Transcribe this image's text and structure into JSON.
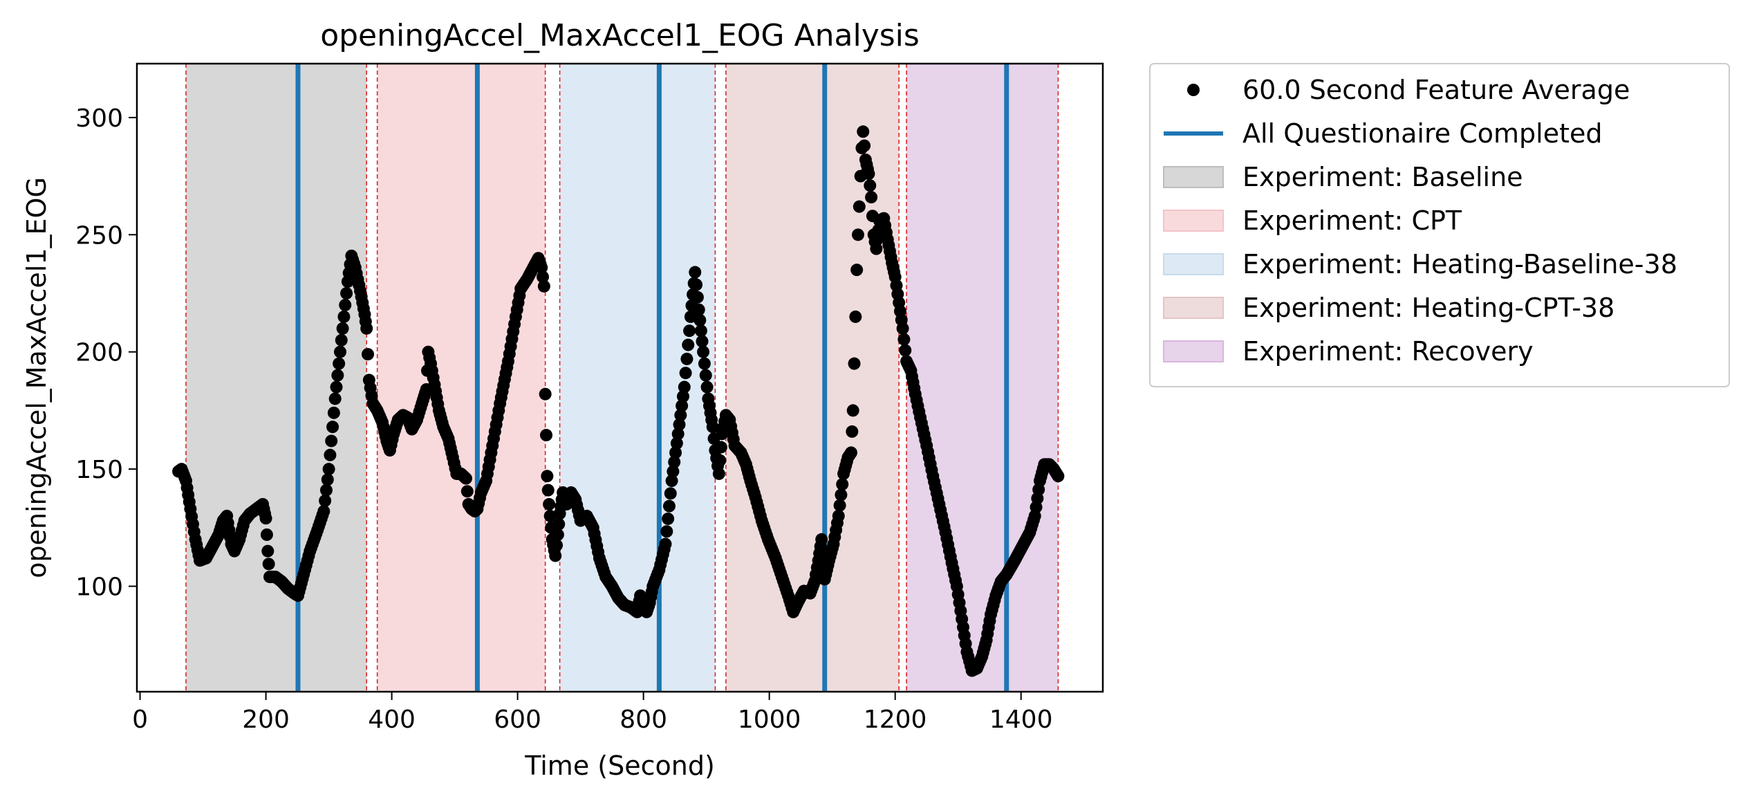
{
  "chart_data": {
    "type": "scatter",
    "title": "openingAccel_MaxAccel1_EOG Analysis",
    "xlabel": "Time (Second)",
    "ylabel": "openingAccel_MaxAccel1_EOG",
    "xlim": [
      -5,
      1530
    ],
    "ylim": [
      55,
      323
    ],
    "xticks": [
      0,
      200,
      400,
      600,
      800,
      1000,
      1200,
      1400
    ],
    "yticks": [
      100,
      150,
      200,
      250,
      300
    ],
    "grid": false,
    "legend_position": "outside-top-right",
    "colors": {
      "points": "#000000",
      "questionnaire": "#1f77b4",
      "boundary": "#d62728"
    },
    "experiments": [
      {
        "name": "Baseline",
        "start": 73,
        "end": 360,
        "color": "#bdbdbd",
        "opacity": 0.6
      },
      {
        "name": "CPT",
        "start": 377,
        "end": 644,
        "color": "#f4c2c6",
        "opacity": 0.6
      },
      {
        "name": "Heating-Baseline-38",
        "start": 667,
        "end": 914,
        "color": "#c6dbed",
        "opacity": 0.6
      },
      {
        "name": "Heating-CPT-38",
        "start": 931,
        "end": 1206,
        "color": "#e3c5c5",
        "opacity": 0.6
      },
      {
        "name": "Recovery",
        "start": 1218,
        "end": 1459,
        "color": "#d7b6dc",
        "opacity": 0.6
      }
    ],
    "questionnaire_times": [
      251,
      536,
      825,
      1088,
      1377
    ],
    "boundary_lines": [
      73,
      360,
      377,
      644,
      667,
      914,
      931,
      1206,
      1218,
      1459
    ],
    "series": [
      {
        "name": "60.0 Second Feature Average",
        "points": [
          [
            61,
            149
          ],
          [
            66,
            150
          ],
          [
            73,
            145
          ],
          [
            80,
            133
          ],
          [
            88,
            120
          ],
          [
            95,
            111
          ],
          [
            105,
            112
          ],
          [
            115,
            117
          ],
          [
            125,
            122
          ],
          [
            132,
            128
          ],
          [
            138,
            130
          ],
          [
            145,
            118
          ],
          [
            150,
            115
          ],
          [
            158,
            120
          ],
          [
            166,
            128
          ],
          [
            175,
            131
          ],
          [
            185,
            133
          ],
          [
            195,
            135
          ],
          [
            200,
            129
          ],
          [
            203,
            115
          ],
          [
            206,
            104
          ],
          [
            215,
            104
          ],
          [
            225,
            102
          ],
          [
            235,
            99
          ],
          [
            245,
            97
          ],
          [
            251,
            96
          ],
          [
            260,
            105
          ],
          [
            270,
            115
          ],
          [
            282,
            124
          ],
          [
            292,
            132
          ],
          [
            300,
            150
          ],
          [
            310,
            180
          ],
          [
            320,
            205
          ],
          [
            330,
            230
          ],
          [
            336,
            241
          ],
          [
            342,
            236
          ],
          [
            350,
            226
          ],
          [
            357,
            216
          ],
          [
            360,
            210
          ],
          [
            364,
            188
          ],
          [
            370,
            178
          ],
          [
            377,
            175
          ],
          [
            385,
            170
          ],
          [
            392,
            162
          ],
          [
            397,
            158
          ],
          [
            403,
            165
          ],
          [
            410,
            171
          ],
          [
            418,
            173
          ],
          [
            425,
            172
          ],
          [
            432,
            167
          ],
          [
            440,
            171
          ],
          [
            448,
            178
          ],
          [
            455,
            184
          ],
          [
            458,
            200
          ],
          [
            462,
            195
          ],
          [
            468,
            186
          ],
          [
            475,
            175
          ],
          [
            482,
            168
          ],
          [
            490,
            163
          ],
          [
            497,
            155
          ],
          [
            503,
            148
          ],
          [
            510,
            148
          ],
          [
            518,
            146
          ],
          [
            522,
            135
          ],
          [
            527,
            133
          ],
          [
            532,
            132
          ],
          [
            536,
            133
          ],
          [
            542,
            140
          ],
          [
            550,
            145
          ],
          [
            560,
            160
          ],
          [
            572,
            178
          ],
          [
            585,
            196
          ],
          [
            597,
            215
          ],
          [
            605,
            227
          ],
          [
            615,
            231
          ],
          [
            625,
            236
          ],
          [
            633,
            240
          ],
          [
            638,
            236
          ],
          [
            642,
            228
          ],
          [
            644,
            182
          ],
          [
            647,
            147
          ],
          [
            650,
            135
          ],
          [
            655,
            120
          ],
          [
            660,
            113
          ],
          [
            664,
            122
          ],
          [
            667,
            131
          ],
          [
            672,
            140
          ],
          [
            678,
            135
          ],
          [
            685,
            140
          ],
          [
            692,
            137
          ],
          [
            700,
            128
          ],
          [
            710,
            130
          ],
          [
            720,
            125
          ],
          [
            730,
            112
          ],
          [
            740,
            104
          ],
          [
            750,
            100
          ],
          [
            760,
            95
          ],
          [
            770,
            92
          ],
          [
            780,
            91
          ],
          [
            790,
            89
          ],
          [
            795,
            96
          ],
          [
            800,
            93
          ],
          [
            805,
            89
          ],
          [
            810,
            93
          ],
          [
            815,
            100
          ],
          [
            825,
            107
          ],
          [
            835,
            118
          ],
          [
            845,
            145
          ],
          [
            855,
            165
          ],
          [
            865,
            185
          ],
          [
            875,
            215
          ],
          [
            882,
            234
          ],
          [
            888,
            218
          ],
          [
            895,
            200
          ],
          [
            903,
            180
          ],
          [
            910,
            168
          ],
          [
            914,
            158
          ],
          [
            920,
            148
          ],
          [
            925,
            165
          ],
          [
            931,
            173
          ],
          [
            937,
            171
          ],
          [
            945,
            160
          ],
          [
            955,
            157
          ],
          [
            963,
            152
          ],
          [
            970,
            145
          ],
          [
            978,
            138
          ],
          [
            988,
            128
          ],
          [
            998,
            120
          ],
          [
            1010,
            112
          ],
          [
            1020,
            104
          ],
          [
            1030,
            96
          ],
          [
            1038,
            89
          ],
          [
            1045,
            93
          ],
          [
            1055,
            98
          ],
          [
            1065,
            97
          ],
          [
            1072,
            102
          ],
          [
            1078,
            111
          ],
          [
            1083,
            120
          ],
          [
            1088,
            103
          ],
          [
            1095,
            111
          ],
          [
            1102,
            118
          ],
          [
            1110,
            130
          ],
          [
            1118,
            148
          ],
          [
            1125,
            155
          ],
          [
            1130,
            157
          ],
          [
            1133,
            175
          ],
          [
            1135,
            195
          ],
          [
            1137,
            215
          ],
          [
            1139,
            235
          ],
          [
            1141,
            250
          ],
          [
            1143,
            262
          ],
          [
            1145,
            275
          ],
          [
            1147,
            287
          ],
          [
            1149,
            294
          ],
          [
            1153,
            282
          ],
          [
            1158,
            276
          ],
          [
            1162,
            266
          ],
          [
            1166,
            250
          ],
          [
            1170,
            244
          ],
          [
            1175,
            256
          ],
          [
            1182,
            257
          ],
          [
            1188,
            248
          ],
          [
            1195,
            238
          ],
          [
            1200,
            232
          ],
          [
            1206,
            221
          ],
          [
            1212,
            210
          ],
          [
            1218,
            196
          ],
          [
            1225,
            192
          ],
          [
            1232,
            182
          ],
          [
            1240,
            172
          ],
          [
            1250,
            160
          ],
          [
            1260,
            147
          ],
          [
            1270,
            135
          ],
          [
            1280,
            123
          ],
          [
            1290,
            110
          ],
          [
            1298,
            100
          ],
          [
            1306,
            86
          ],
          [
            1314,
            72
          ],
          [
            1322,
            64
          ],
          [
            1330,
            65
          ],
          [
            1338,
            70
          ],
          [
            1345,
            77
          ],
          [
            1352,
            88
          ],
          [
            1360,
            96
          ],
          [
            1368,
            102
          ],
          [
            1377,
            105
          ],
          [
            1390,
            111
          ],
          [
            1402,
            117
          ],
          [
            1414,
            123
          ],
          [
            1422,
            130
          ],
          [
            1430,
            145
          ],
          [
            1437,
            152
          ],
          [
            1445,
            152
          ],
          [
            1452,
            150
          ],
          [
            1459,
            147
          ]
        ]
      }
    ],
    "legend": [
      {
        "label": "60.0 Second Feature Average",
        "kind": "marker",
        "color": "#000000"
      },
      {
        "label": "All Questionaire Completed",
        "kind": "line",
        "color": "#1f77b4"
      },
      {
        "label": "Experiment: Baseline",
        "kind": "patch",
        "color": "#bdbdbd"
      },
      {
        "label": "Experiment: CPT",
        "kind": "patch",
        "color": "#f4c2c6"
      },
      {
        "label": "Experiment: Heating-Baseline-38",
        "kind": "patch",
        "color": "#c6dbed"
      },
      {
        "label": "Experiment: Heating-CPT-38",
        "kind": "patch",
        "color": "#e3c5c5"
      },
      {
        "label": "Experiment: Recovery",
        "kind": "patch",
        "color": "#d7b6dc"
      }
    ]
  }
}
